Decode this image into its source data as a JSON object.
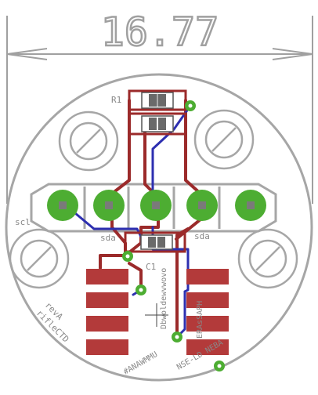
{
  "dimension": {
    "value": "16.77"
  },
  "labels": {
    "r1": "R1",
    "c1": "C1",
    "scl": "scl",
    "sda_left": "sda",
    "sda_right": "sda",
    "rev": "revA",
    "project": "rifleCTD",
    "chip_line1": "Dbwoldewvwovo",
    "chip_line2": "ERAsSAPH",
    "bottom_line1": "#ANAWMMU",
    "bottom_line2": "NSE-LD NEBA"
  },
  "colors": {
    "background": "#ffffff",
    "outline": "#a6a6a6",
    "pad_ring": "#4dad32",
    "copper_top": "#9b2a2a",
    "copper_bottom": "#2d2fb0",
    "smd_pad": "#b33a3a",
    "dimension": "#a0a0a0"
  },
  "icons": [
    "mounting-hole-icon",
    "via-icon",
    "origin-cross-icon"
  ]
}
